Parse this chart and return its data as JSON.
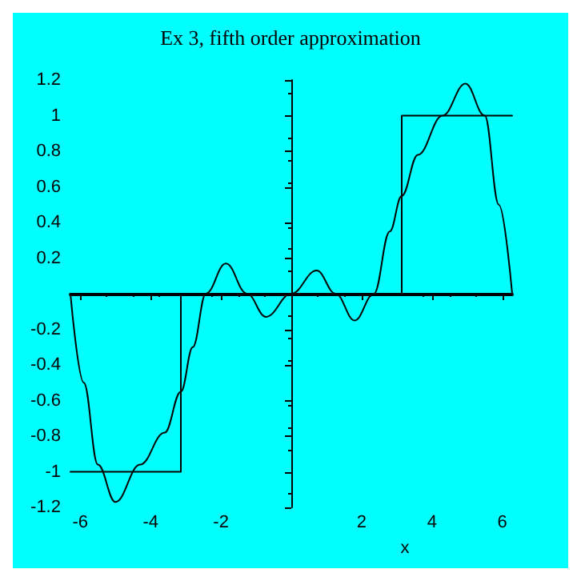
{
  "chart_data": {
    "type": "line",
    "title": "Ex 3, fifth order approximation",
    "xlabel": "x",
    "series": [
      {
        "type": "step",
        "color": "#000000",
        "x": [
          -6.28,
          -3.14,
          3.14,
          6.28
        ],
        "values": [
          -1,
          0,
          1,
          1
        ]
      },
      {
        "color": "#000000",
        "x": [
          -6.28,
          -5.9,
          -5.5,
          -5.0,
          -4.3,
          -3.6,
          -3.14,
          -2.8,
          -2.43,
          -1.86,
          -1.26,
          -0.72,
          0,
          0.72,
          1.26,
          1.8,
          2.35,
          2.8,
          3.14,
          3.6,
          4.3,
          4.95,
          5.5,
          5.9,
          6.28
        ],
        "values": [
          0,
          -0.5,
          -0.96,
          -1.17,
          -0.96,
          -0.78,
          -0.55,
          -0.3,
          0,
          0.17,
          0,
          -0.13,
          0,
          0.13,
          0,
          -0.15,
          0,
          0.35,
          0.55,
          0.78,
          1.0,
          1.18,
          1.0,
          0.5,
          0
        ]
      }
    ],
    "xlim": [
      -6.28,
      6.28
    ],
    "xticks": [
      -6,
      -4,
      -2,
      2,
      4,
      6
    ],
    "ylim": [
      -1.2,
      1.2
    ],
    "yticks": [
      -1.2,
      -1,
      -0.8,
      -0.6,
      -0.4,
      -0.2,
      0.2,
      0.4,
      0.6,
      0.8,
      1,
      1.2
    ],
    "grid": false,
    "marker": "none",
    "line_style": "solid"
  }
}
